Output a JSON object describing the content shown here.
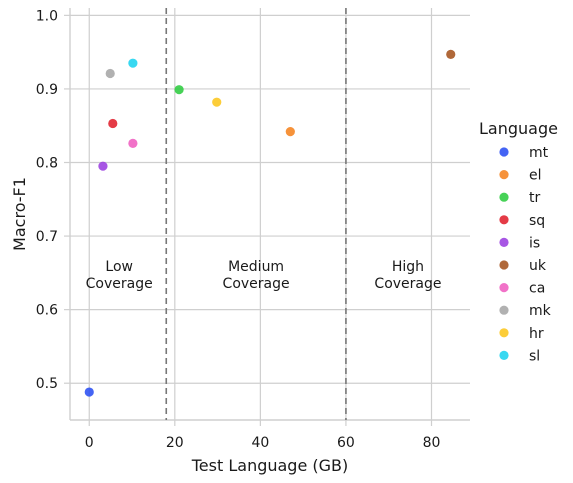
{
  "chart_data": {
    "type": "scatter",
    "xlabel": "Test Language (GB)",
    "ylabel": "Macro-F1",
    "xlim": [
      -4.5,
      89
    ],
    "ylim": [
      0.45,
      1.01
    ],
    "xticks": [
      0,
      20,
      40,
      60,
      80
    ],
    "yticks": [
      0.5,
      0.6,
      0.7,
      0.8,
      0.9,
      1.0
    ],
    "grid": true,
    "legend": {
      "title": "Language",
      "placement": "right"
    },
    "series": [
      {
        "name": "mt",
        "color": "#2a4ff2",
        "x": 0.0,
        "y": 0.488
      },
      {
        "name": "el",
        "color": "#f5831f",
        "x": 47.0,
        "y": 0.842
      },
      {
        "name": "tr",
        "color": "#2ecc40",
        "x": 21.0,
        "y": 0.899
      },
      {
        "name": "sq",
        "color": "#e0202c",
        "x": 5.5,
        "y": 0.853
      },
      {
        "name": "is",
        "color": "#9b3fe0",
        "x": 3.2,
        "y": 0.795
      },
      {
        "name": "uk",
        "color": "#a5531e",
        "x": 84.5,
        "y": 0.947
      },
      {
        "name": "ca",
        "color": "#ef5fc0",
        "x": 10.2,
        "y": 0.826
      },
      {
        "name": "mk",
        "color": "#a6a6a6",
        "x": 4.9,
        "y": 0.921
      },
      {
        "name": "hr",
        "color": "#fcc61e",
        "x": 29.8,
        "y": 0.882
      },
      {
        "name": "sl",
        "color": "#1dd3ef",
        "x": 10.2,
        "y": 0.935
      }
    ],
    "thresholds": [
      18,
      60
    ],
    "regions": [
      {
        "lines": [
          "Low",
          "Coverage"
        ],
        "x": 7
      },
      {
        "lines": [
          "Medium",
          "Coverage"
        ],
        "x": 39
      },
      {
        "lines": [
          "High",
          "Coverage"
        ],
        "x": 74.5
      }
    ],
    "region_label_y": 0.64
  }
}
